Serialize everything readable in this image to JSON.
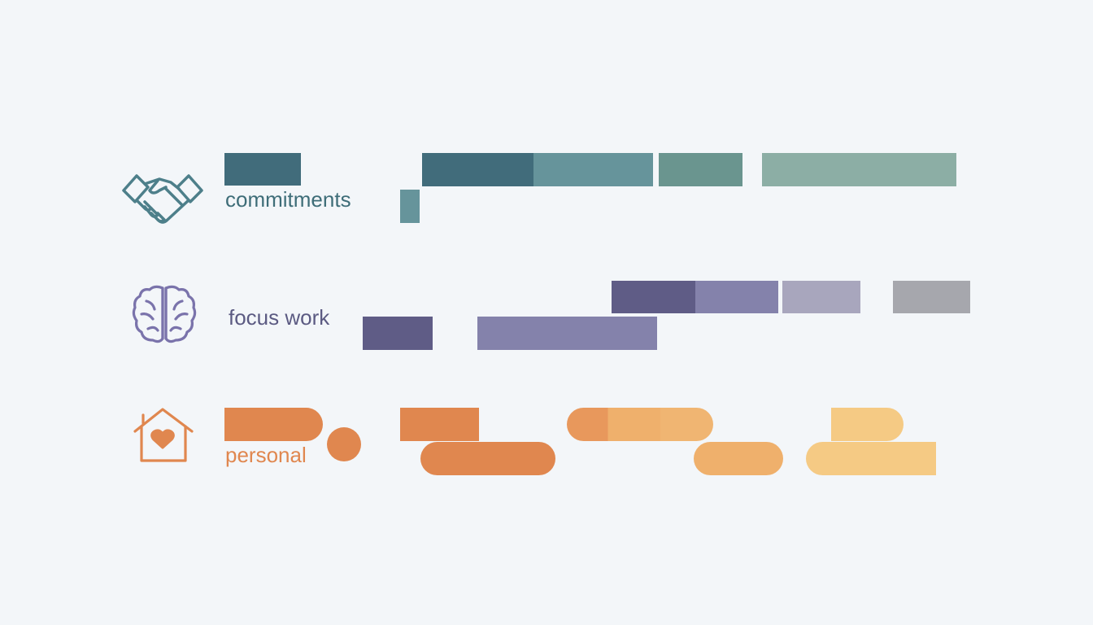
{
  "categories": [
    {
      "id": "commitments",
      "label": "commitments",
      "icon": "handshake-icon",
      "color": "#3e6d78"
    },
    {
      "id": "focus",
      "label": "focus work",
      "icon": "brain-icon",
      "color": "#6f6aa0"
    },
    {
      "id": "personal",
      "label": "personal",
      "icon": "house-heart-icon",
      "color": "#e0874f"
    }
  ],
  "palette": {
    "commitments": [
      "#416c7b",
      "#4d7d88",
      "#66949b",
      "#6a958f",
      "#8caea5"
    ],
    "focus": [
      "#5f5c86",
      "#8482ab",
      "#a8a6bd",
      "#a6a7ad"
    ],
    "personal": [
      "#e0874f",
      "#e8985c",
      "#efb06c",
      "#f5ca84"
    ]
  }
}
